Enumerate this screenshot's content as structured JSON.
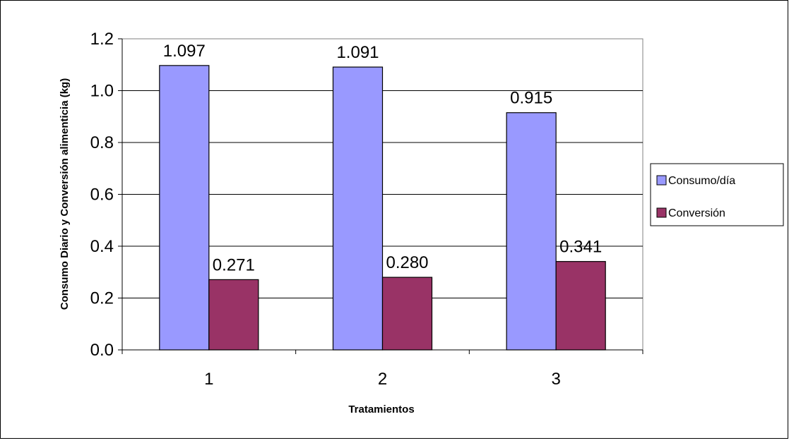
{
  "chart_data": {
    "type": "bar",
    "title": "",
    "xlabel": "Tratamientos",
    "ylabel": "Consumo Diario y Conversión alimenticia (kg)",
    "categories": [
      "1",
      "2",
      "3"
    ],
    "series": [
      {
        "name": "Consumo/día",
        "color": "#9999ff",
        "values": [
          1.097,
          1.091,
          0.915
        ],
        "labels": [
          "1.097",
          "1.091",
          "0.915"
        ]
      },
      {
        "name": "Conversión",
        "color": "#993366",
        "values": [
          0.271,
          0.28,
          0.341
        ],
        "labels": [
          "0.271",
          "0.280",
          "0.341"
        ]
      }
    ],
    "ylim": [
      0,
      1.2
    ],
    "yticks": [
      "0.0",
      "0.2",
      "0.4",
      "0.6",
      "0.8",
      "1.0",
      "1.2"
    ],
    "grid": true,
    "legend_position": "right"
  }
}
